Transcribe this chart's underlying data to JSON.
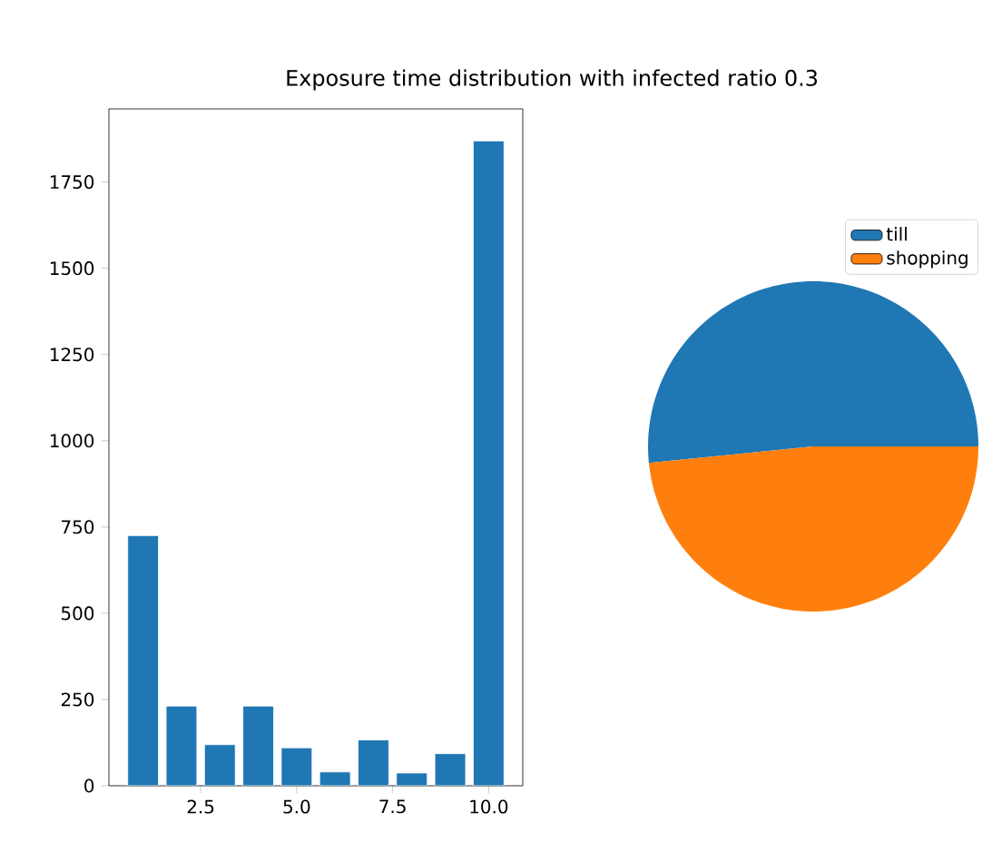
{
  "chart_data": [
    {
      "type": "bar",
      "title": "Exposure time distribution with infected ratio 0.3",
      "x": [
        1,
        2,
        3,
        4,
        5,
        6,
        7,
        8,
        9,
        10
      ],
      "values": [
        725,
        231,
        119,
        231,
        110,
        40,
        133,
        37,
        93,
        1869
      ],
      "color": "#1f77b4",
      "xlim": [
        0.11,
        10.89
      ],
      "ylim": [
        0,
        1962
      ],
      "xticks": [
        {
          "value": 2.5,
          "label": "2.5"
        },
        {
          "value": 5,
          "label": "5.0"
        },
        {
          "value": 7.5,
          "label": "7.5"
        },
        {
          "value": 10,
          "label": "10.0"
        }
      ],
      "yticks": [
        0,
        250,
        500,
        750,
        1000,
        1250,
        1500,
        1750
      ]
    },
    {
      "type": "pie",
      "categories": [
        "till",
        "shopping"
      ],
      "values": [
        51.6,
        48.4
      ],
      "colors": [
        "#1f77b4",
        "#ff7f0e"
      ],
      "legend": "top right"
    }
  ]
}
